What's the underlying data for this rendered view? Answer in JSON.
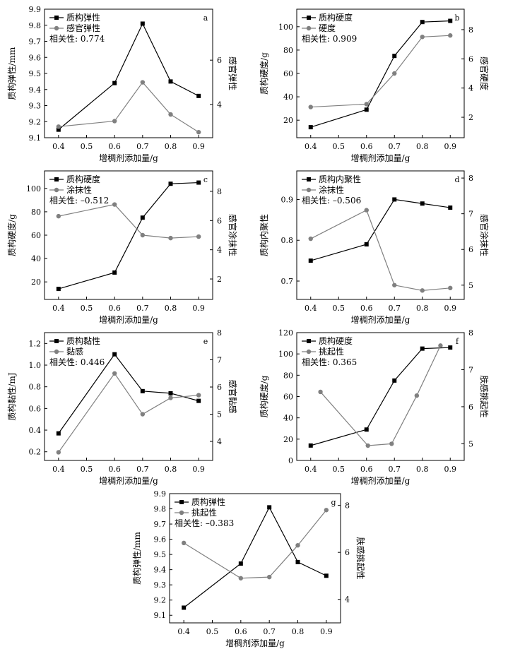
{
  "chart_data": [
    {
      "id": "a",
      "type": "line",
      "letter": "a",
      "xlabel": "增稠剂添加量/g",
      "ylabel": "质构弹性/mm",
      "y2label": "感官弹性",
      "xlim": [
        0.35,
        0.95
      ],
      "xticks": [
        0.4,
        0.5,
        0.6,
        0.7,
        0.8,
        0.9
      ],
      "ylim": [
        9.1,
        9.9
      ],
      "yticks": [
        "9.1",
        "9.2",
        "9.3",
        "9.4",
        "9.5",
        "9.6",
        "9.7",
        "9.8",
        "9.9"
      ],
      "y2lim": [
        2.5,
        8.3
      ],
      "y2ticks": [
        "4",
        "6"
      ],
      "correlation": "相关性: 0.774",
      "series": [
        {
          "name": "质构弹性",
          "axis": "left",
          "marker": "square",
          "color": "#000000",
          "x": [
            0.4,
            0.6,
            0.7,
            0.8,
            0.9
          ],
          "y": [
            9.15,
            9.44,
            9.81,
            9.45,
            9.36
          ]
        },
        {
          "name": "感官弹性",
          "axis": "right",
          "marker": "circle",
          "color": "#808080",
          "x": [
            0.4,
            0.6,
            0.7,
            0.8,
            0.9
          ],
          "y": [
            3.0,
            3.25,
            5.0,
            3.55,
            2.75
          ]
        }
      ]
    },
    {
      "id": "b",
      "type": "line",
      "letter": "b",
      "xlabel": "增稠剂添加量/g",
      "ylabel": "质构硬度/g",
      "y2label": "感官硬度",
      "xlim": [
        0.35,
        0.95
      ],
      "xticks": [
        0.4,
        0.5,
        0.6,
        0.7,
        0.8,
        0.9
      ],
      "ylim": [
        5,
        115
      ],
      "yticks": [
        "20",
        "40",
        "60",
        "80",
        "100"
      ],
      "y2lim": [
        0.6,
        9.4
      ],
      "y2ticks": [
        "2",
        "4",
        "6",
        "8"
      ],
      "correlation": "相关性: 0.909",
      "series": [
        {
          "name": "质构硬度",
          "axis": "left",
          "marker": "square",
          "color": "#000000",
          "x": [
            0.4,
            0.6,
            0.7,
            0.8,
            0.9
          ],
          "y": [
            14,
            29,
            75,
            104,
            105
          ]
        },
        {
          "name": "硬度",
          "axis": "right",
          "marker": "circle",
          "color": "#808080",
          "x": [
            0.4,
            0.6,
            0.7,
            0.8,
            0.9
          ],
          "y": [
            2.7,
            2.9,
            5.0,
            7.5,
            7.6
          ]
        }
      ]
    },
    {
      "id": "c",
      "type": "line",
      "letter": "c",
      "xlabel": "增稠剂添加量/g",
      "ylabel": "质构硬度/g",
      "y2label": "感官涂抹性",
      "xlim": [
        0.35,
        0.95
      ],
      "xticks": [
        0.4,
        0.5,
        0.6,
        0.7,
        0.8,
        0.9
      ],
      "ylim": [
        5,
        115
      ],
      "yticks": [
        "20",
        "40",
        "60",
        "80",
        "100"
      ],
      "y2lim": [
        0.6,
        9.4
      ],
      "y2ticks": [
        "2",
        "4",
        "6",
        "8"
      ],
      "correlation": "相关性: –0.512",
      "series": [
        {
          "name": "质构硬度",
          "axis": "left",
          "marker": "square",
          "color": "#000000",
          "x": [
            0.4,
            0.6,
            0.7,
            0.8,
            0.9
          ],
          "y": [
            14,
            28,
            75,
            104,
            105
          ]
        },
        {
          "name": "涂抹性",
          "axis": "right",
          "marker": "circle",
          "color": "#808080",
          "x": [
            0.4,
            0.6,
            0.7,
            0.8,
            0.9
          ],
          "y": [
            6.3,
            7.1,
            5.0,
            4.8,
            4.9
          ]
        }
      ]
    },
    {
      "id": "d",
      "type": "line",
      "letter": "d",
      "xlabel": "增稠剂添加量/g",
      "ylabel": "质构内聚性",
      "y2label": "感官涂抹性",
      "xlim": [
        0.35,
        0.95
      ],
      "xticks": [
        0.4,
        0.5,
        0.6,
        0.7,
        0.8,
        0.9
      ],
      "ylim": [
        0.655,
        0.97
      ],
      "yticks": [
        "0.7",
        "0.8",
        "0.9"
      ],
      "y2lim": [
        4.6,
        8.2
      ],
      "y2ticks": [
        "5",
        "6",
        "7",
        "8"
      ],
      "correlation": "相关性: –0.506",
      "series": [
        {
          "name": "质构内聚性",
          "axis": "left",
          "marker": "square",
          "color": "#000000",
          "x": [
            0.4,
            0.6,
            0.7,
            0.8,
            0.9
          ],
          "y": [
            0.75,
            0.79,
            0.9,
            0.89,
            0.88
          ]
        },
        {
          "name": "涂抹性",
          "axis": "right",
          "marker": "circle",
          "color": "#808080",
          "x": [
            0.4,
            0.6,
            0.7,
            0.8,
            0.9
          ],
          "y": [
            6.3,
            7.1,
            5.0,
            4.85,
            4.92
          ]
        }
      ]
    },
    {
      "id": "e",
      "type": "line",
      "letter": "e",
      "xlabel": "增稠剂添加量/g",
      "ylabel": "质构黏性/mJ",
      "y2label": "感官黏感",
      "xlim": [
        0.35,
        0.95
      ],
      "xticks": [
        0.4,
        0.5,
        0.6,
        0.7,
        0.8,
        0.9
      ],
      "ylim": [
        0.12,
        1.3
      ],
      "yticks": [
        "0.2",
        "0.4",
        "0.6",
        "0.8",
        "1.0",
        "1.2"
      ],
      "y2lim": [
        3.3,
        8.0
      ],
      "y2ticks": [
        "4",
        "5",
        "6",
        "7",
        "8"
      ],
      "correlation": "相关性: 0.446",
      "series": [
        {
          "name": "质构黏性",
          "axis": "left",
          "marker": "square",
          "color": "#000000",
          "x": [
            0.4,
            0.6,
            0.7,
            0.8,
            0.9
          ],
          "y": [
            0.37,
            1.1,
            0.76,
            0.74,
            0.67
          ]
        },
        {
          "name": "黏感",
          "axis": "right",
          "marker": "circle",
          "color": "#808080",
          "x": [
            0.4,
            0.6,
            0.7,
            0.8,
            0.9
          ],
          "y": [
            3.6,
            6.5,
            5.0,
            5.6,
            5.7
          ]
        }
      ]
    },
    {
      "id": "f",
      "type": "line",
      "letter": "f",
      "xlabel": "增稠剂添加量/g",
      "ylabel": "质构硬度/g",
      "y2label": "肤感挑起性",
      "xlim": [
        0.35,
        0.95
      ],
      "xticks": [
        0.4,
        0.5,
        0.6,
        0.7,
        0.8,
        0.9
      ],
      "ylim": [
        0,
        120
      ],
      "yticks": [
        "0",
        "20",
        "40",
        "60",
        "80",
        "100",
        "120"
      ],
      "y2lim": [
        4.55,
        8.0
      ],
      "y2ticks": [
        "5",
        "6",
        "7",
        "8"
      ],
      "correlation": "相关性: 0.365",
      "series": [
        {
          "name": "质构硬度",
          "axis": "left",
          "marker": "square",
          "color": "#000000",
          "x": [
            0.4,
            0.6,
            0.7,
            0.8,
            0.9
          ],
          "y": [
            14,
            29,
            75,
            105,
            106
          ]
        },
        {
          "name": "挑起性",
          "axis": "right",
          "marker": "circle",
          "color": "#808080",
          "x": [
            0.435,
            0.605,
            0.69,
            0.78,
            0.865
          ],
          "y": [
            6.4,
            4.95,
            5.0,
            6.3,
            7.65
          ]
        }
      ]
    },
    {
      "id": "g",
      "type": "line",
      "letter": "g",
      "xlabel": "增稠剂添加量/g",
      "ylabel": "质构弹性/mm",
      "y2label": "肤感挑起性",
      "xlim": [
        0.35,
        0.95
      ],
      "xticks": [
        0.4,
        0.5,
        0.6,
        0.7,
        0.8,
        0.9
      ],
      "ylim": [
        9.05,
        9.9
      ],
      "yticks": [
        "9.1",
        "9.2",
        "9.3",
        "9.4",
        "9.5",
        "9.6",
        "9.7",
        "9.8",
        "9.9"
      ],
      "y2lim": [
        3.0,
        8.5
      ],
      "y2ticks": [
        "4",
        "6",
        "8"
      ],
      "correlation": "相关性: –0.383",
      "series": [
        {
          "name": "质构弹性",
          "axis": "left",
          "marker": "square",
          "color": "#000000",
          "x": [
            0.4,
            0.6,
            0.7,
            0.8,
            0.9
          ],
          "y": [
            9.15,
            9.44,
            9.81,
            9.45,
            9.36
          ]
        },
        {
          "name": "挑起性",
          "axis": "right",
          "marker": "circle",
          "color": "#808080",
          "x": [
            0.4,
            0.6,
            0.7,
            0.8,
            0.9
          ],
          "y": [
            6.4,
            4.9,
            4.95,
            6.3,
            7.8
          ]
        }
      ]
    }
  ]
}
